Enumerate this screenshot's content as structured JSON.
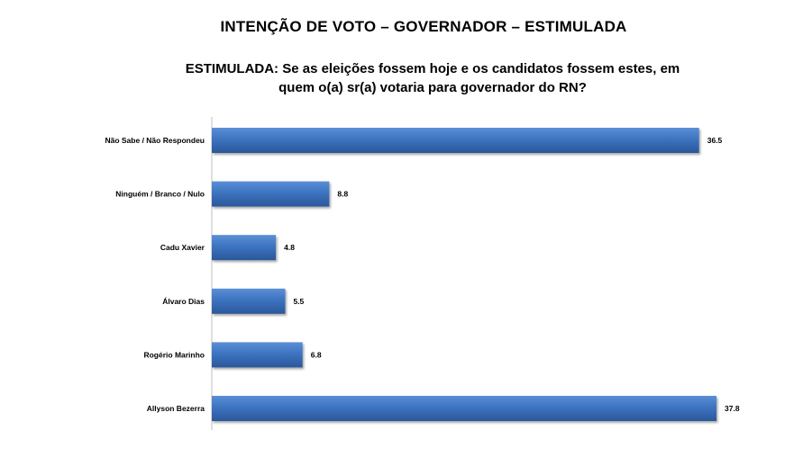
{
  "page": {
    "title": "INTENÇÃO DE VOTO – GOVERNADOR – ESTIMULADA",
    "question_line1": "ESTIMULADA: Se as eleições fossem hoje e os candidatos fossem estes, em",
    "question_line2": "quem o(a) sr(a) votaria para governador do RN?"
  },
  "chart_data": {
    "type": "bar",
    "orientation": "horizontal",
    "categories": [
      "Não Sabe / Não Respondeu",
      "Ninguém / Branco / Nulo",
      "Cadu Xavier",
      "Álvaro Dias",
      "Rogério Marinho",
      "Allyson Bezerra"
    ],
    "values": [
      36.5,
      8.8,
      4.8,
      5.5,
      6.8,
      37.8
    ],
    "value_labels": [
      "36.5",
      "8.8",
      "4.8",
      "5.5",
      "6.8",
      "37.8"
    ],
    "xlim": [
      0,
      40
    ],
    "grid": false,
    "legend": "none",
    "bar_color": "#3d74c0",
    "bar_color_dark": "#2a579a"
  }
}
